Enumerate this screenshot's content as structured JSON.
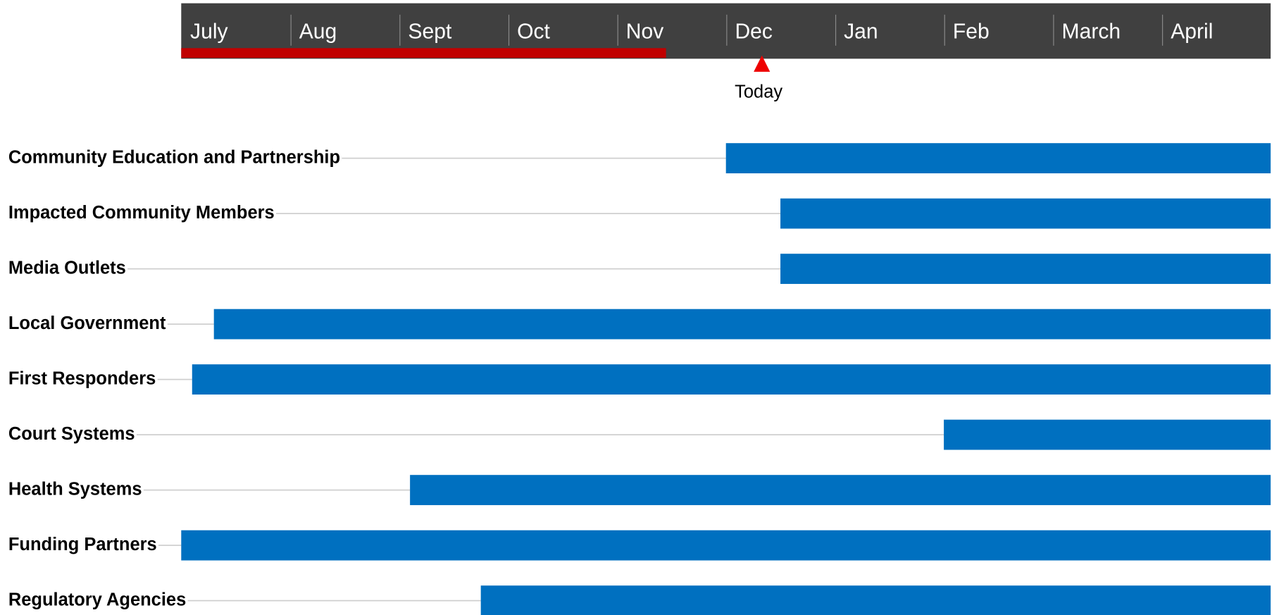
{
  "chart_data": {
    "type": "gantt",
    "categories": [
      "July",
      "Aug",
      "Sept",
      "Oct",
      "Nov",
      "Dec",
      "Jan",
      "Feb",
      "March",
      "April"
    ],
    "xlim": [
      0,
      10
    ],
    "tasks": [
      "Community Education and Partnership",
      "Impacted Community Members",
      "Media Outlets",
      "Local Government",
      "First Responders",
      "Court Systems",
      "Health Systems",
      "Funding Partners",
      "Regulatory Agencies"
    ],
    "start": [
      5.0,
      5.5,
      5.5,
      0.3,
      0.1,
      7.0,
      2.1,
      0.0,
      2.75
    ],
    "end": [
      10,
      10,
      10,
      10,
      10,
      10,
      10,
      10,
      10
    ],
    "color": "#0070c0",
    "progress": 4.45,
    "progress_color": "#c00000",
    "today": {
      "label": "Today",
      "value": 5.33
    },
    "today_color": "#ee0000"
  }
}
